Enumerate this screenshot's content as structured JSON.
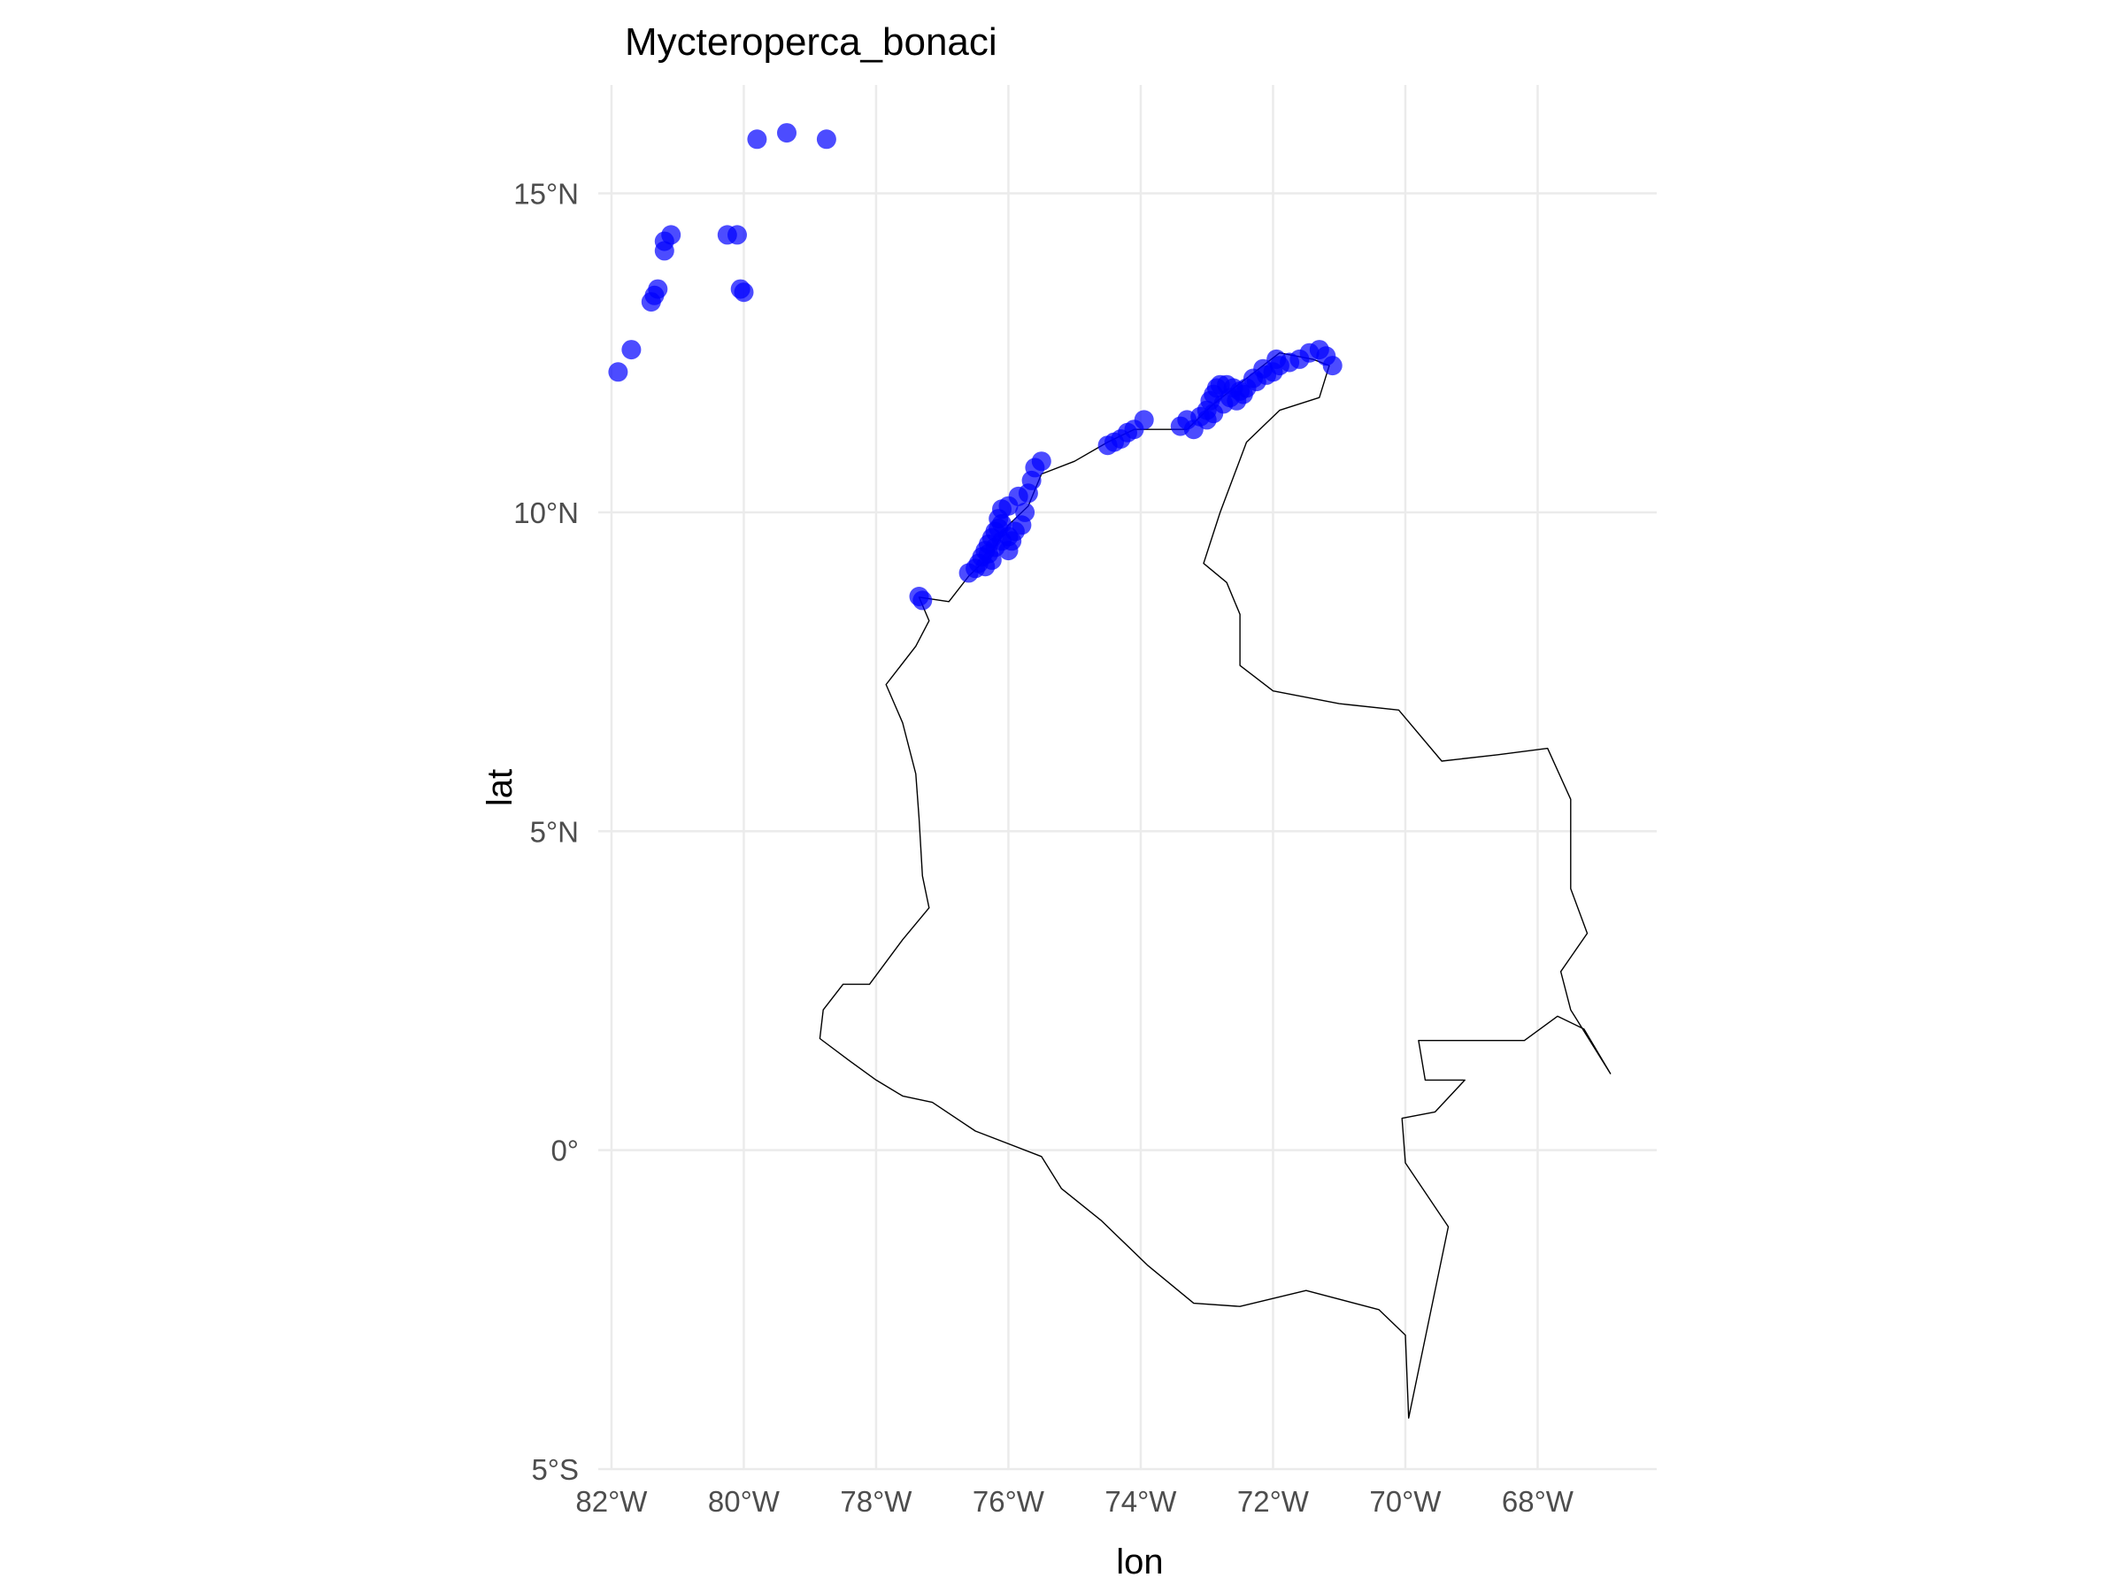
{
  "chart_data": {
    "type": "scatter",
    "title": "Mycteroperca_bonaci",
    "xlabel": "lon",
    "ylabel": "lat",
    "xlim": [
      -82.2,
      -66.2
    ],
    "ylim": [
      -5,
      16.7
    ],
    "x_ticks": [
      -82,
      -80,
      -78,
      -76,
      -74,
      -72,
      -70,
      -68
    ],
    "x_tick_labels": [
      "82°W",
      "80°W",
      "78°W",
      "76°W",
      "74°W",
      "72°W",
      "70°W",
      "68°W"
    ],
    "y_ticks": [
      -5,
      0,
      5,
      10,
      15
    ],
    "y_tick_labels": [
      "5°S",
      "0°",
      "5°N",
      "10°N",
      "15°N"
    ],
    "grid": true,
    "point_color": "#0000ff",
    "point_alpha": 0.7,
    "outline_color": "#000000",
    "basemap": {
      "name": "Colombia",
      "outline": [
        [
          -77.35,
          8.67
        ],
        [
          -77.2,
          8.3
        ],
        [
          -77.4,
          7.9
        ],
        [
          -77.85,
          7.3
        ],
        [
          -77.6,
          6.7
        ],
        [
          -77.4,
          5.9
        ],
        [
          -77.35,
          5.2
        ],
        [
          -77.3,
          4.3
        ],
        [
          -77.2,
          3.8
        ],
        [
          -77.6,
          3.3
        ],
        [
          -78.1,
          2.6
        ],
        [
          -78.5,
          2.6
        ],
        [
          -78.8,
          2.2
        ],
        [
          -78.85,
          1.75
        ],
        [
          -78.4,
          1.4
        ],
        [
          -78.0,
          1.1
        ],
        [
          -77.6,
          0.85
        ],
        [
          -77.15,
          0.75
        ],
        [
          -76.5,
          0.3
        ],
        [
          -75.5,
          -0.1
        ],
        [
          -75.2,
          -0.6
        ],
        [
          -74.6,
          -1.1
        ],
        [
          -73.9,
          -1.8
        ],
        [
          -73.2,
          -2.4
        ],
        [
          -72.5,
          -2.45
        ],
        [
          -71.5,
          -2.2
        ],
        [
          -70.4,
          -2.5
        ],
        [
          -70.0,
          -2.9
        ],
        [
          -69.95,
          -4.2
        ],
        [
          -69.35,
          -1.2
        ],
        [
          -70.0,
          -0.2
        ],
        [
          -70.05,
          0.5
        ],
        [
          -69.55,
          0.6
        ],
        [
          -69.1,
          1.1
        ],
        [
          -69.7,
          1.1
        ],
        [
          -69.8,
          1.72
        ],
        [
          -68.2,
          1.72
        ],
        [
          -67.7,
          2.1
        ],
        [
          -67.3,
          1.9
        ],
        [
          -66.9,
          1.2
        ],
        [
          -67.5,
          2.2
        ],
        [
          -67.65,
          2.8
        ],
        [
          -67.25,
          3.4
        ],
        [
          -67.5,
          4.1
        ],
        [
          -67.5,
          5.5
        ],
        [
          -67.85,
          6.3
        ],
        [
          -68.6,
          6.2
        ],
        [
          -69.45,
          6.1
        ],
        [
          -70.1,
          6.9
        ],
        [
          -71.0,
          7.0
        ],
        [
          -72.0,
          7.2
        ],
        [
          -72.5,
          7.6
        ],
        [
          -72.5,
          8.4
        ],
        [
          -72.7,
          8.9
        ],
        [
          -73.05,
          9.2
        ],
        [
          -72.8,
          10.0
        ],
        [
          -72.4,
          11.1
        ],
        [
          -71.9,
          11.6
        ],
        [
          -71.3,
          11.8
        ],
        [
          -71.15,
          12.3
        ],
        [
          -71.4,
          12.4
        ],
        [
          -71.9,
          12.5
        ],
        [
          -72.4,
          12.1
        ],
        [
          -72.9,
          11.7
        ],
        [
          -73.3,
          11.3
        ],
        [
          -74.1,
          11.3
        ],
        [
          -74.5,
          11.1
        ],
        [
          -75.0,
          10.8
        ],
        [
          -75.5,
          10.6
        ],
        [
          -75.7,
          10.1
        ],
        [
          -76.0,
          9.8
        ],
        [
          -76.3,
          9.3
        ],
        [
          -76.6,
          9.0
        ],
        [
          -76.9,
          8.6
        ],
        [
          -77.35,
          8.67
        ]
      ]
    },
    "points": [
      [
        -81.9,
        12.2
      ],
      [
        -81.7,
        12.55
      ],
      [
        -81.4,
        13.3
      ],
      [
        -81.35,
        13.4
      ],
      [
        -81.3,
        13.5
      ],
      [
        -81.2,
        14.1
      ],
      [
        -81.2,
        14.25
      ],
      [
        -81.1,
        14.35
      ],
      [
        -80.25,
        14.35
      ],
      [
        -80.1,
        14.35
      ],
      [
        -80.05,
        13.5
      ],
      [
        -80.0,
        13.45
      ],
      [
        -79.8,
        15.85
      ],
      [
        -79.35,
        15.95
      ],
      [
        -78.75,
        15.85
      ],
      [
        -77.35,
        8.68
      ],
      [
        -77.3,
        8.62
      ],
      [
        -76.6,
        9.05
      ],
      [
        -76.5,
        9.12
      ],
      [
        -76.45,
        9.2
      ],
      [
        -76.4,
        9.3
      ],
      [
        -76.35,
        9.4
      ],
      [
        -76.3,
        9.5
      ],
      [
        -76.25,
        9.6
      ],
      [
        -76.2,
        9.7
      ],
      [
        -76.15,
        9.75
      ],
      [
        -76.1,
        9.82
      ],
      [
        -76.3,
        9.35
      ],
      [
        -76.2,
        9.45
      ],
      [
        -76.1,
        9.55
      ],
      [
        -76.0,
        9.62
      ],
      [
        -75.9,
        9.7
      ],
      [
        -76.15,
        9.9
      ],
      [
        -76.1,
        10.05
      ],
      [
        -76.0,
        10.1
      ],
      [
        -75.8,
        9.8
      ],
      [
        -75.75,
        10.0
      ],
      [
        -75.85,
        10.25
      ],
      [
        -75.7,
        10.3
      ],
      [
        -75.65,
        10.5
      ],
      [
        -75.6,
        10.7
      ],
      [
        -75.5,
        10.8
      ],
      [
        -76.25,
        9.25
      ],
      [
        -76.35,
        9.15
      ],
      [
        -76.0,
        9.4
      ],
      [
        -75.95,
        9.55
      ],
      [
        -74.5,
        11.05
      ],
      [
        -74.4,
        11.1
      ],
      [
        -74.3,
        11.15
      ],
      [
        -74.2,
        11.25
      ],
      [
        -74.1,
        11.3
      ],
      [
        -73.95,
        11.45
      ],
      [
        -73.4,
        11.35
      ],
      [
        -73.3,
        11.45
      ],
      [
        -73.2,
        11.3
      ],
      [
        -73.1,
        11.5
      ],
      [
        -73.0,
        11.6
      ],
      [
        -72.95,
        11.75
      ],
      [
        -72.9,
        11.85
      ],
      [
        -72.85,
        11.95
      ],
      [
        -72.8,
        12.0
      ],
      [
        -72.7,
        12.0
      ],
      [
        -72.6,
        11.95
      ],
      [
        -72.5,
        11.9
      ],
      [
        -72.45,
        11.85
      ],
      [
        -72.65,
        11.8
      ],
      [
        -72.75,
        11.7
      ],
      [
        -72.9,
        11.55
      ],
      [
        -73.0,
        11.45
      ],
      [
        -72.55,
        11.75
      ],
      [
        -72.4,
        11.95
      ],
      [
        -72.25,
        12.05
      ],
      [
        -72.1,
        12.15
      ],
      [
        -72.0,
        12.2
      ],
      [
        -71.9,
        12.3
      ],
      [
        -71.75,
        12.35
      ],
      [
        -71.6,
        12.4
      ],
      [
        -71.45,
        12.5
      ],
      [
        -71.3,
        12.55
      ],
      [
        -71.2,
        12.45
      ],
      [
        -71.1,
        12.3
      ],
      [
        -72.3,
        12.1
      ],
      [
        -72.15,
        12.25
      ],
      [
        -71.95,
        12.4
      ]
    ]
  }
}
